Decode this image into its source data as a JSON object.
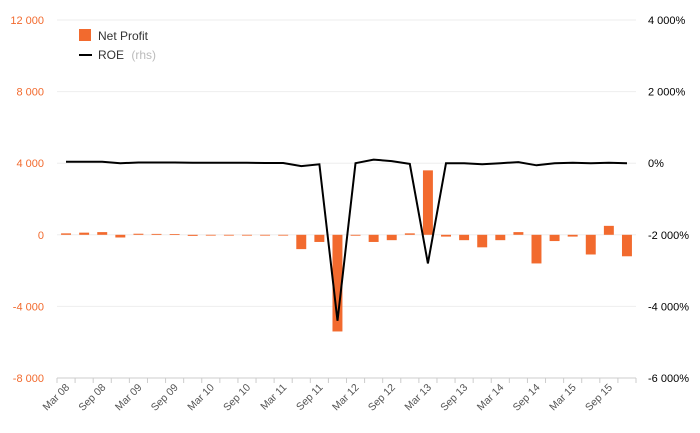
{
  "chart_data": {
    "type": "bar+line",
    "categories": [
      "Mar 08",
      "Jun 08",
      "Sep 08",
      "Dec 08",
      "Mar 09",
      "Jun 09",
      "Sep 09",
      "Dec 09",
      "Mar 10",
      "Jun 10",
      "Sep 10",
      "Dec 10",
      "Mar 11",
      "Jun 11",
      "Sep 11",
      "Dec 11",
      "Mar 12",
      "Jun 12",
      "Sep 12",
      "Dec 12",
      "Mar 13",
      "Jun 13",
      "Sep 13",
      "Dec 13",
      "Mar 14",
      "Jun 14",
      "Sep 14",
      "Dec 14",
      "Mar 15",
      "Jun 15",
      "Sep 15",
      "Dec 15"
    ],
    "x_tick_labels": [
      "Mar 08",
      "Sep 08",
      "Mar 09",
      "Sep 09",
      "Mar 10",
      "Sep 10",
      "Mar 11",
      "Sep 11",
      "Mar 12",
      "Sep 12",
      "Mar 13",
      "Sep 13",
      "Mar 14",
      "Sep 14",
      "Mar 15",
      "Sep 15"
    ],
    "series": [
      {
        "name": "Net Profit",
        "axis": "left",
        "type": "bar",
        "color": "#f26a2e",
        "values": [
          80,
          120,
          150,
          -150,
          60,
          50,
          40,
          -60,
          0,
          0,
          0,
          -40,
          0,
          -800,
          -400,
          -5400,
          -50,
          -400,
          -300,
          80,
          3600,
          -100,
          -300,
          -700,
          -300,
          150,
          -1600,
          -350,
          -100,
          -1100,
          500,
          -1200
        ]
      },
      {
        "name": "ROE",
        "name_note": "(rhs)",
        "axis": "right",
        "type": "line",
        "color": "#000000",
        "values": [
          40,
          40,
          40,
          0,
          20,
          20,
          20,
          10,
          10,
          10,
          10,
          5,
          5,
          -80,
          -30,
          -4400,
          0,
          100,
          60,
          -20,
          -2800,
          0,
          0,
          -30,
          0,
          30,
          -60,
          0,
          10,
          0,
          10,
          0
        ]
      }
    ],
    "y_left": {
      "ticks": [
        12000,
        8000,
        4000,
        0,
        -4000,
        -8000
      ],
      "tick_labels": [
        "12 000",
        "8 000",
        "4 000",
        "0",
        "-4 000",
        "-8 000"
      ],
      "range": [
        -8000,
        12000
      ]
    },
    "y_right": {
      "ticks": [
        4000,
        2000,
        0,
        -2000,
        -4000,
        -6000
      ],
      "tick_labels": [
        "4 000%",
        "2 000%",
        "0%",
        "-2 000%",
        "-4 000%",
        "-6 000%"
      ],
      "range": [
        -6000,
        4000
      ]
    },
    "grid": true,
    "legend_position": "top-left"
  }
}
